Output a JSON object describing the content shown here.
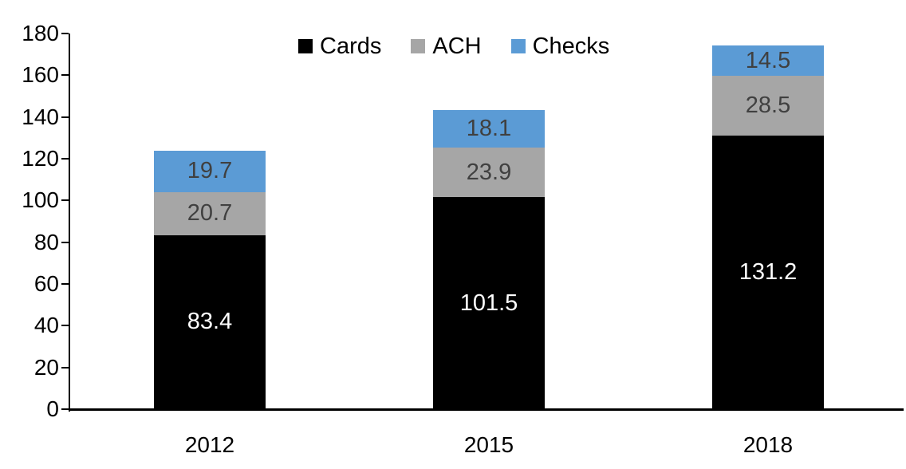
{
  "chart_data": {
    "type": "bar",
    "stacked": true,
    "title": "",
    "xlabel": "",
    "ylabel": "",
    "categories": [
      "2012",
      "2015",
      "2018"
    ],
    "series": [
      {
        "name": "Cards",
        "color": "#000000",
        "label_color": "#FFFFFF",
        "values": [
          83.4,
          101.5,
          131.2
        ]
      },
      {
        "name": "ACH",
        "color": "#A6A6A6",
        "label_color": "#404040",
        "values": [
          20.7,
          23.9,
          28.5
        ]
      },
      {
        "name": "Checks",
        "color": "#5B9BD5",
        "label_color": "#404040",
        "values": [
          19.7,
          18.1,
          14.5
        ]
      }
    ],
    "ylim": [
      0,
      180
    ],
    "ytick_step": 20,
    "ytick_labels": [
      "0",
      "20",
      "40",
      "60",
      "80",
      "100",
      "120",
      "140",
      "160",
      "180"
    ],
    "grid": false,
    "legend_position": "top",
    "legend_entries": [
      "Cards",
      "ACH",
      "Checks"
    ],
    "axis_color": "#000000",
    "background_color": "#FFFFFF"
  }
}
